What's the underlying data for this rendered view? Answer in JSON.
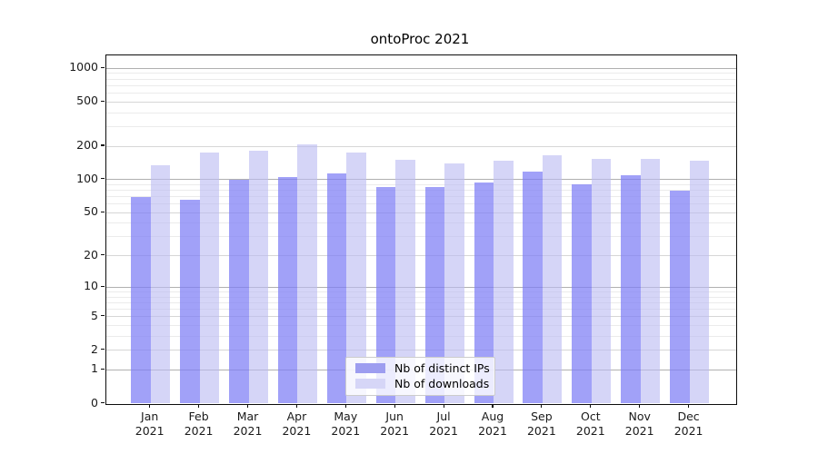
{
  "title": "ontoProc 2021",
  "chart_data": {
    "type": "bar",
    "title": "ontoProc 2021",
    "scale": "log10(x+1)",
    "ylim": [
      0,
      1317
    ],
    "grid": "horizontal",
    "legend_position": "bottom-center-inside",
    "categories": [
      "Jan 2021",
      "Feb 2021",
      "Mar 2021",
      "Apr 2021",
      "May 2021",
      "Jun 2021",
      "Jul 2021",
      "Aug 2021",
      "Sep 2021",
      "Oct 2021",
      "Nov 2021",
      "Dec 2021"
    ],
    "series": [
      {
        "name": "Nb of distinct IPs",
        "color": "#9d9df0",
        "fill": "rgba(125,125,245,0.72)",
        "values": [
          69,
          66,
          100,
          106,
          113,
          85,
          85,
          95,
          119,
          91,
          109,
          80
        ]
      },
      {
        "name": "Nb of downloads",
        "color": "#d6d6f7",
        "fill": "rgba(187,187,242,0.62)",
        "values": [
          135,
          176,
          181,
          206,
          176,
          151,
          140,
          149,
          165,
          155,
          155,
          148
        ]
      }
    ],
    "y_ticks": [
      {
        "label": "1000",
        "value": 1000
      },
      {
        "label": "500",
        "value": 500
      },
      {
        "label": "200",
        "value": 200
      },
      {
        "label": "100",
        "value": 100
      },
      {
        "label": "50",
        "value": 50
      },
      {
        "label": "20",
        "value": 20
      },
      {
        "label": "10",
        "value": 10
      },
      {
        "label": "5",
        "value": 5
      },
      {
        "label": "2",
        "value": 2
      },
      {
        "label": "1",
        "value": 1
      },
      {
        "label": "0",
        "value": 0
      }
    ],
    "gridlines": {
      "major": [
        1,
        10,
        100,
        1000
      ],
      "mid": [
        2,
        5,
        20,
        50,
        200,
        500
      ],
      "minor": [
        3,
        4,
        6,
        7,
        8,
        9,
        30,
        40,
        60,
        70,
        80,
        90,
        300,
        400,
        600,
        700,
        800,
        900
      ]
    }
  },
  "colors": {
    "grid_major": "#b0b0b0",
    "grid_mid": "#d6d6d6",
    "grid_minor": "#ebebeb",
    "spine": "#0d0d0d",
    "background": "#ffffff"
  }
}
